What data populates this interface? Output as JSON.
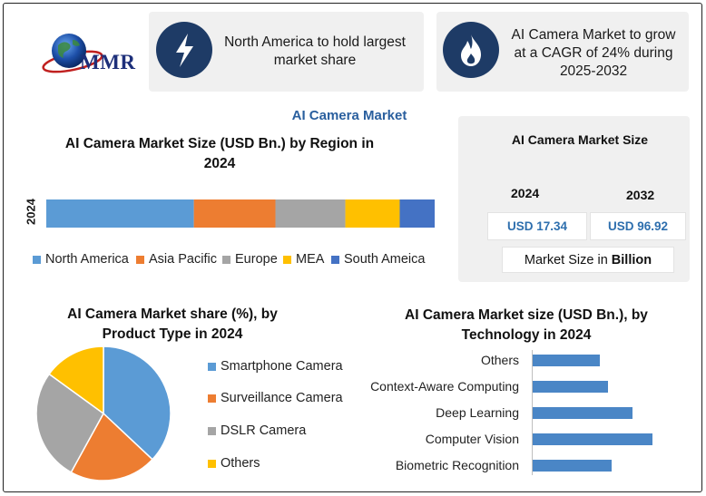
{
  "logo": {
    "text": "MMR"
  },
  "highlights": [
    {
      "icon": "lightning-bolt-icon",
      "text": "North America to hold largest market share"
    },
    {
      "icon": "flame-icon",
      "text": "AI Camera Market to grow at a CAGR of 24% during 2025-2032"
    }
  ],
  "main_title": "AI Camera Market",
  "colors": {
    "north_america": "#5b9bd5",
    "asia_pacific": "#ed7d31",
    "europe": "#a5a5a5",
    "mea": "#ffc000",
    "south_america": "#4472c4",
    "tech_bar": "#4a86c6",
    "value_text": "#2e6fae",
    "icon_circle": "#1e3b66"
  },
  "market_size_card": {
    "title": "AI Camera Market Size",
    "years": [
      "2024",
      "2032"
    ],
    "values": [
      "USD 17.34",
      "USD 96.92"
    ],
    "footer_prefix": "Market Size in ",
    "footer_bold": "Billion"
  },
  "chart_data": [
    {
      "type": "bar",
      "orientation": "horizontal-stacked",
      "title": "AI Camera Market Size (USD Bn.) by Region in 2024",
      "categories": [
        "2024"
      ],
      "series": [
        {
          "name": "North America",
          "values": [
            38
          ]
        },
        {
          "name": "Asia Pacific",
          "values": [
            21
          ]
        },
        {
          "name": "Europe",
          "values": [
            18
          ]
        },
        {
          "name": "MEA",
          "values": [
            14
          ]
        },
        {
          "name": "South Ameica",
          "values": [
            9
          ]
        }
      ],
      "legend": "bottom"
    },
    {
      "type": "pie",
      "title": "AI Camera Market share (%), by Product Type in 2024",
      "labels": [
        "Smartphone Camera",
        "Surveillance Camera",
        "DSLR Camera",
        "Others"
      ],
      "values": [
        37,
        21,
        27,
        15
      ],
      "legend": "right"
    },
    {
      "type": "bar",
      "orientation": "horizontal",
      "title": "AI Camera Market size (USD Bn.), by Technology in 2024",
      "categories": [
        "Others",
        "Context-Aware Computing",
        "Deep Learning",
        "Computer Vision",
        "Biometric Recognition"
      ],
      "values": [
        5.6,
        6.3,
        8.3,
        10.0,
        6.6
      ],
      "xlim": [
        0,
        10
      ]
    }
  ]
}
